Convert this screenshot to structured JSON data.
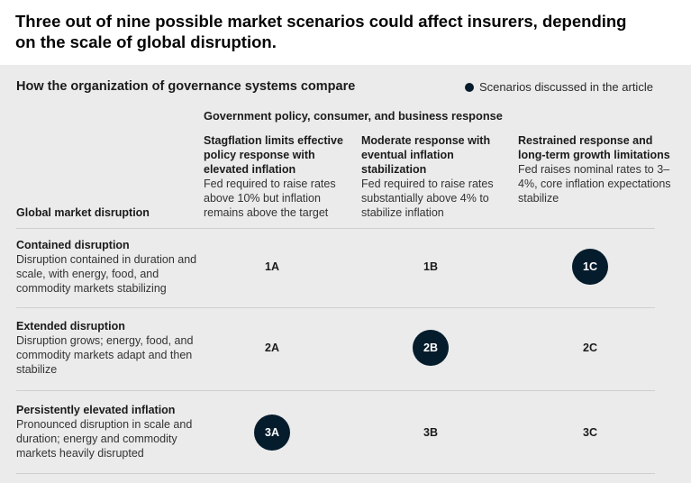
{
  "title": "Three out of nine possible market scenarios could affect insurers, depending on the scale of global disruption.",
  "subtitle": "How the organization of governance systems compare",
  "legend": {
    "label": "Scenarios discussed in the article",
    "color": "#051c2c"
  },
  "column_group_header": "Government policy, consumer, and business response",
  "row_axis_label": "Global market disruption",
  "columns": [
    {
      "heading": "Stagflation limits effective policy response with elevated inflation",
      "description": "Fed required to raise rates above 10% but inflation remains above the target"
    },
    {
      "heading": "Moderate response with eventual inflation stabilization",
      "description": "Fed required to raise rates substantially above 4% to stabilize inflation"
    },
    {
      "heading": "Restrained response and long-term growth limitations",
      "description": "Fed raises nominal rates to 3–4%, core inflation expectations stabilize"
    }
  ],
  "rows": [
    {
      "heading": "Contained disruption",
      "description": "Disruption contained in duration and scale, with energy, food, and commodity markets stabilizing",
      "cells": [
        {
          "label": "1A",
          "highlighted": false
        },
        {
          "label": "1B",
          "highlighted": false
        },
        {
          "label": "1C",
          "highlighted": true
        }
      ]
    },
    {
      "heading": "Extended disruption",
      "description": "Disruption grows; energy, food, and commodity markets adapt and then stabilize",
      "cells": [
        {
          "label": "2A",
          "highlighted": false
        },
        {
          "label": "2B",
          "highlighted": true
        },
        {
          "label": "2C",
          "highlighted": false
        }
      ]
    },
    {
      "heading": "Persistently elevated inflation",
      "description": "Pronounced disruption in scale and duration; energy and commodity markets heavily disrupted",
      "cells": [
        {
          "label": "3A",
          "highlighted": true
        },
        {
          "label": "3B",
          "highlighted": false
        },
        {
          "label": "3C",
          "highlighted": false
        }
      ]
    }
  ]
}
